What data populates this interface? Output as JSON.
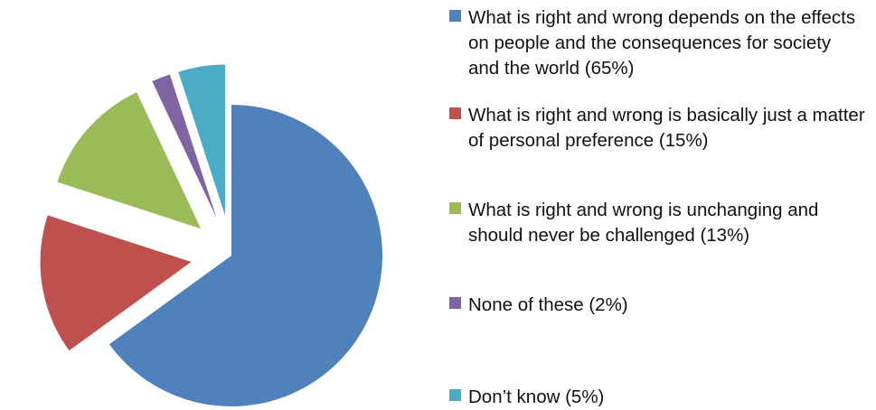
{
  "chart_data": {
    "type": "pie",
    "exploded": true,
    "series": [
      {
        "values": [
          65,
          15,
          13,
          2,
          5
        ]
      }
    ],
    "slices": [
      {
        "value": 65,
        "color": "#4F81BD",
        "label": "What is right and wrong depends on the effects on people and the consequences for society and the world (65%)"
      },
      {
        "value": 15,
        "color": "#C0504D",
        "label": "What is right and wrong is basically just a matter of personal preference (15%)"
      },
      {
        "value": 13,
        "color": "#9BBB59",
        "label": "What is right and wrong is unchanging and should never be challenged (13%)"
      },
      {
        "value": 2,
        "color": "#8064A2",
        "label": "None of these (2%)"
      },
      {
        "value": 5,
        "color": "#4BACC6",
        "label": "Don’t know (5%)"
      }
    ],
    "legend": {
      "position": "right",
      "entries": [
        "What is right and wrong depends on the effects on people and the consequences for society and the world (65%)",
        "What is right and wrong is basically just a matter of personal preference (15%)",
        "What is right and wrong is unchanging and should never be challenged (13%)",
        "None of these (2%)",
        "Don’t know (5%)"
      ]
    }
  }
}
